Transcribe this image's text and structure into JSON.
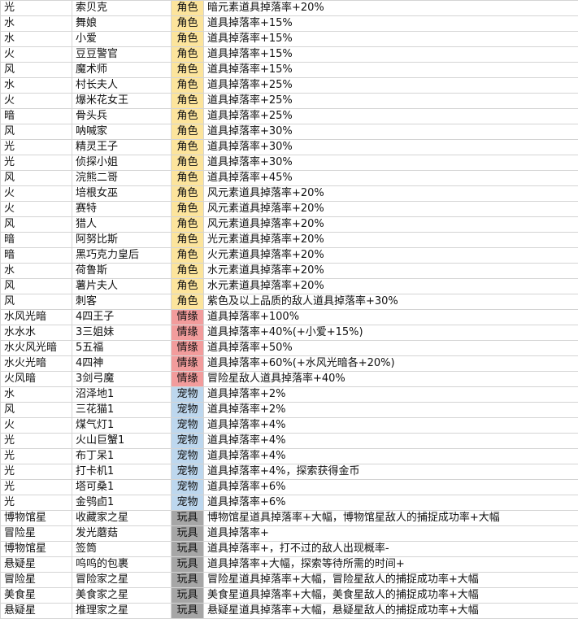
{
  "type_colors": {
    "角色": "#fce49c",
    "情缘": "#f29c9c",
    "宠物": "#bdd7ee",
    "玩具": "#a6a6a6"
  },
  "rows": [
    [
      "光",
      "索贝克",
      "角色",
      "暗元素道具掉落率+20%"
    ],
    [
      "水",
      "舞娘",
      "角色",
      "道具掉落率+15%"
    ],
    [
      "水",
      "小爱",
      "角色",
      "道具掉落率+15%"
    ],
    [
      "火",
      "豆豆警官",
      "角色",
      "道具掉落率+15%"
    ],
    [
      "风",
      "魔术师",
      "角色",
      "道具掉落率+15%"
    ],
    [
      "水",
      "村长夫人",
      "角色",
      "道具掉落率+25%"
    ],
    [
      "火",
      "爆米花女王",
      "角色",
      "道具掉落率+25%"
    ],
    [
      "暗",
      "骨头兵",
      "角色",
      "道具掉落率+25%"
    ],
    [
      "风",
      "呐喊家",
      "角色",
      "道具掉落率+30%"
    ],
    [
      "光",
      "精灵王子",
      "角色",
      "道具掉落率+30%"
    ],
    [
      "光",
      "侦探小姐",
      "角色",
      "道具掉落率+30%"
    ],
    [
      "风",
      "浣熊二哥",
      "角色",
      "道具掉落率+45%"
    ],
    [
      "火",
      "培根女巫",
      "角色",
      "风元素道具掉落率+20%"
    ],
    [
      "火",
      "赛特",
      "角色",
      "风元素道具掉落率+20%"
    ],
    [
      "风",
      "猎人",
      "角色",
      "风元素道具掉落率+20%"
    ],
    [
      "暗",
      "阿努比斯",
      "角色",
      "光元素道具掉落率+20%"
    ],
    [
      "暗",
      "黑巧克力皇后",
      "角色",
      "火元素道具掉落率+20%"
    ],
    [
      "水",
      "荷鲁斯",
      "角色",
      "水元素道具掉落率+20%"
    ],
    [
      "风",
      "薯片夫人",
      "角色",
      "水元素道具掉落率+20%"
    ],
    [
      "风",
      "刺客",
      "角色",
      "紫色及以上品质的敌人道具掉落率+30%"
    ],
    [
      "水风光暗",
      "4四王子",
      "情缘",
      "道具掉落率+100%"
    ],
    [
      "水水水",
      "3三姐妹",
      "情缘",
      "道具掉落率+40%(+小爱+15%)"
    ],
    [
      "水火风光暗",
      "5五福",
      "情缘",
      "道具掉落率+50%"
    ],
    [
      "水火光暗",
      "4四神",
      "情缘",
      "道具掉落率+60%(+水风光暗各+20%)"
    ],
    [
      "火风暗",
      "3剑弓魔",
      "情缘",
      "冒险星敌人道具掉落率+40%"
    ],
    [
      "水",
      "沼泽地1",
      "宠物",
      "道具掉落率+2%"
    ],
    [
      "风",
      "三花猫1",
      "宠物",
      "道具掉落率+2%"
    ],
    [
      "火",
      "煤气灯1",
      "宠物",
      "道具掉落率+4%"
    ],
    [
      "光",
      "火山巨蟹1",
      "宠物",
      "道具掉落率+4%"
    ],
    [
      "光",
      "布丁呆1",
      "宠物",
      "道具掉落率+4%"
    ],
    [
      "光",
      "打卡机1",
      "宠物",
      "道具掉落率+4%，探索获得金币"
    ],
    [
      "光",
      "塔可桑1",
      "宠物",
      "道具掉落率+6%"
    ],
    [
      "光",
      "金鸮卣1",
      "宠物",
      "道具掉落率+6%"
    ],
    [
      "博物馆星",
      "收藏家之星",
      "玩具",
      "博物馆星道具掉落率+大幅，博物馆星敌人的捕捉成功率+大幅"
    ],
    [
      "冒险星",
      "发光蘑菇",
      "玩具",
      "道具掉落率+"
    ],
    [
      "博物馆星",
      "签筒",
      "玩具",
      "道具掉落率+，打不过的敌人出现概率-"
    ],
    [
      "悬疑星",
      "呜呜的包裹",
      "玩具",
      "道具掉落率+大幅，探索等待所需的时间+"
    ],
    [
      "冒险星",
      "冒险家之星",
      "玩具",
      "冒险星道具掉落率+大幅，冒险星敌人的捕捉成功率+大幅"
    ],
    [
      "美食星",
      "美食家之星",
      "玩具",
      "美食星道具掉落率+大幅，美食星敌人的捕捉成功率+大幅"
    ],
    [
      "悬疑星",
      "推理家之星",
      "玩具",
      "悬疑星道具掉落率+大幅，悬疑星敌人的捕捉成功率+大幅"
    ]
  ]
}
